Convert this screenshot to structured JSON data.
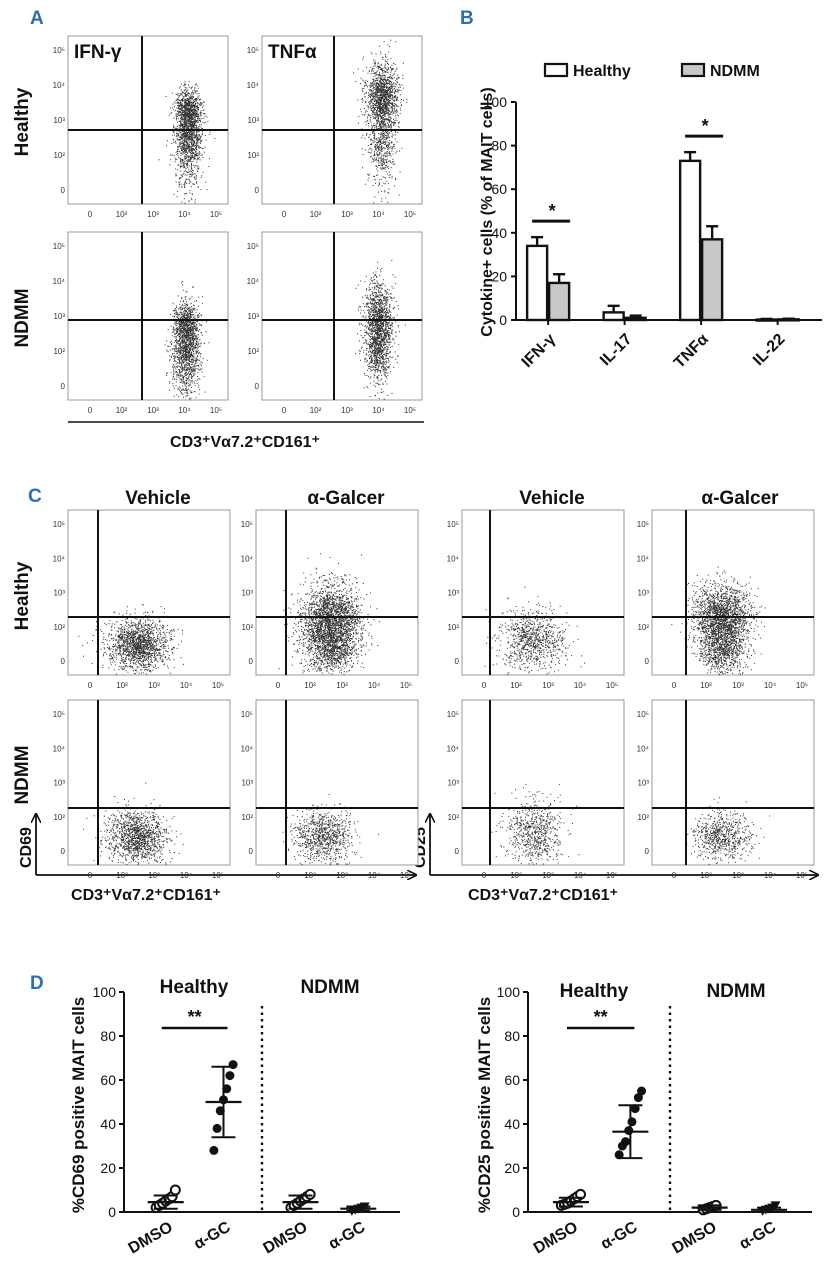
{
  "panel_labels": {
    "a": "A",
    "b": "B",
    "c": "C",
    "d": "D"
  },
  "colors": {
    "accent": "#2e6fb0",
    "healthy_bar": "#ffffff",
    "ndmm_bar": "#c8c8c8",
    "ink": "#111111"
  },
  "panel_a": {
    "col_labels": [
      "IFN-γ",
      "TNFα"
    ],
    "row_labels": [
      "Healthy",
      "NDMM"
    ],
    "y_ticks": [
      "10⁵",
      "10⁴",
      "10³",
      "10²",
      "0"
    ],
    "x_ticks": [
      "0",
      "10²",
      "10³",
      "10⁴",
      "10⁵"
    ],
    "x_title": "CD3⁺Vα7.2⁺CD161⁺"
  },
  "panel_c": {
    "col_labels": [
      "Vehicle",
      "α-Galcer",
      "Vehicle",
      "α-Galcer"
    ],
    "row_labels": [
      "Healthy",
      "NDMM"
    ],
    "y_ticks": [
      "10⁵",
      "10⁴",
      "10³",
      "10²",
      "0"
    ],
    "x_ticks": [
      "0",
      "10²",
      "10³",
      "10⁴",
      "10⁵"
    ],
    "y_title_left": "CD69",
    "y_title_right": "CD25",
    "x_title_left": "CD3⁺Vα7.2⁺CD161⁺",
    "x_title_right": "CD3⁺Vα7.2⁺CD161⁺"
  },
  "chart_data": [
    {
      "id": "panel-b",
      "type": "bar",
      "categories": [
        "IFN-γ",
        "IL-17",
        "TNFα",
        "IL-22"
      ],
      "series": [
        {
          "name": "Healthy",
          "values": [
            34,
            3.5,
            73,
            0.2
          ],
          "errors": [
            4,
            3,
            4,
            0.3
          ]
        },
        {
          "name": "NDMM",
          "values": [
            17,
            1,
            37,
            0.3
          ],
          "errors": [
            4,
            1,
            6,
            0.3
          ]
        }
      ],
      "ylabel": "Cytokine+ cells (% of MAIT cells)",
      "ylim": [
        0,
        100
      ],
      "yticks": [
        0,
        20,
        40,
        60,
        80,
        100
      ],
      "legend": "top",
      "significance": [
        {
          "category": "IFN-γ",
          "label": "*"
        },
        {
          "category": "TNFα",
          "label": "*"
        }
      ]
    },
    {
      "id": "panel-d-cd69",
      "type": "scatter",
      "group_labels": [
        "Healthy",
        "NDMM"
      ],
      "categories": [
        "DMSO",
        "α-GC",
        "DMSO",
        "α-GC"
      ],
      "points": [
        [
          2,
          3,
          4,
          5,
          6,
          7,
          10
        ],
        [
          28,
          38,
          46,
          51,
          56,
          62,
          67
        ],
        [
          2,
          3,
          4,
          5,
          6,
          7,
          8
        ],
        [
          0.5,
          1,
          1.5,
          2,
          2.5
        ]
      ],
      "means": [
        4.5,
        50,
        4.5,
        1.5
      ],
      "sd": [
        3,
        16,
        3,
        1
      ],
      "markers": [
        "circle-open",
        "circle-filled",
        "circle-open",
        "triangle-down-filled"
      ],
      "ylabel": "%CD69 positive MAIT cells",
      "ylim": [
        0,
        100
      ],
      "yticks": [
        0,
        20,
        40,
        60,
        80,
        100
      ],
      "significance": {
        "between": [
          "DMSO",
          "α-GC"
        ],
        "group": "Healthy",
        "label": "**"
      }
    },
    {
      "id": "panel-d-cd25",
      "type": "scatter",
      "group_labels": [
        "Healthy",
        "NDMM"
      ],
      "categories": [
        "DMSO",
        "α-GC",
        "DMSO",
        "α-GC"
      ],
      "points": [
        [
          3,
          3.5,
          4,
          5,
          6,
          7,
          8
        ],
        [
          26,
          30,
          32,
          37,
          41,
          47,
          52,
          55
        ],
        [
          1,
          1.5,
          2,
          2.5,
          3
        ],
        [
          0.5,
          1,
          1.5,
          2,
          3
        ]
      ],
      "means": [
        4.5,
        36.5,
        2,
        1
      ],
      "sd": [
        2,
        12,
        1,
        1
      ],
      "markers": [
        "circle-open",
        "circle-filled",
        "circle-open",
        "triangle-down-filled"
      ],
      "ylabel": "%CD25 positive MAIT cells",
      "ylim": [
        0,
        100
      ],
      "yticks": [
        0,
        20,
        40,
        60,
        80,
        100
      ],
      "significance": {
        "between": [
          "DMSO",
          "α-GC"
        ],
        "group": "Healthy",
        "label": "**"
      }
    }
  ]
}
